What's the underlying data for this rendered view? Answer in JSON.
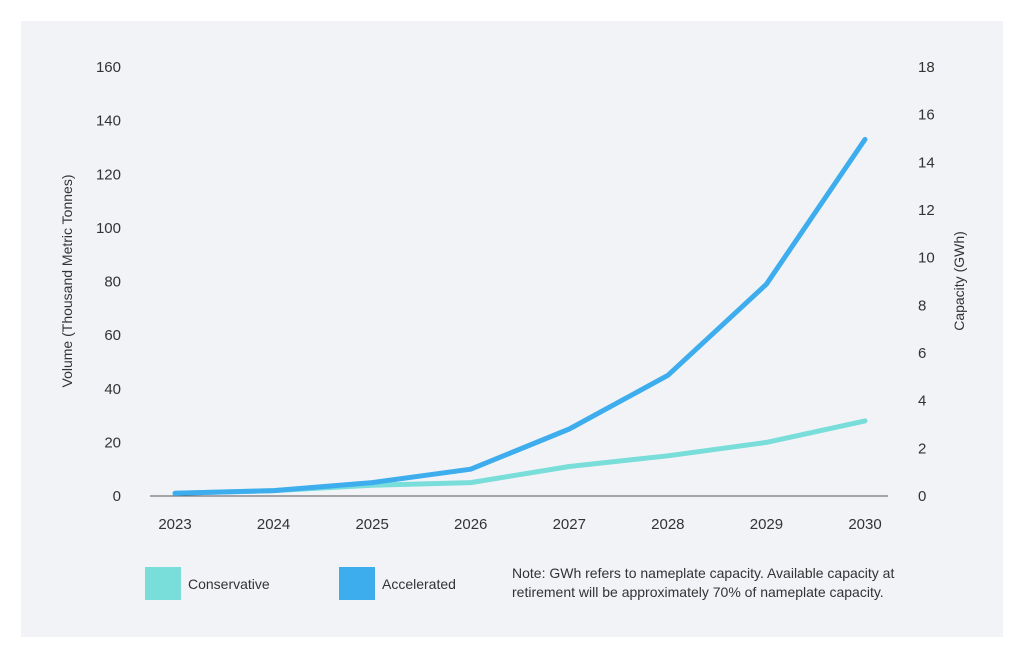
{
  "chart_data": {
    "type": "line",
    "x": [
      "2023",
      "2024",
      "2025",
      "2026",
      "2027",
      "2028",
      "2029",
      "2030"
    ],
    "series": [
      {
        "name": "Conservative",
        "color": "#79ddd9",
        "values": [
          1,
          2,
          4,
          5,
          11,
          15,
          20,
          28
        ]
      },
      {
        "name": "Accelerated",
        "color": "#3eadee",
        "values": [
          1,
          2,
          5,
          10,
          25,
          45,
          79,
          133
        ]
      }
    ],
    "ylabel": "Volume (Thousand Metric Tonnes)",
    "ylim": [
      0,
      160
    ],
    "yticks": [
      "0",
      "20",
      "40",
      "60",
      "80",
      "100",
      "120",
      "140",
      "160"
    ],
    "y2label": "Capacity (GWh)",
    "y2lim": [
      0,
      18
    ],
    "y2ticks": [
      "0",
      "2",
      "4",
      "6",
      "8",
      "10",
      "12",
      "14",
      "16",
      "18"
    ],
    "legend_position": "bottom-left",
    "grid": false
  },
  "note": [
    "Note: GWh refers to nameplate capacity. Available capacity at",
    "retirement will be approximately 70% of nameplate capacity."
  ]
}
